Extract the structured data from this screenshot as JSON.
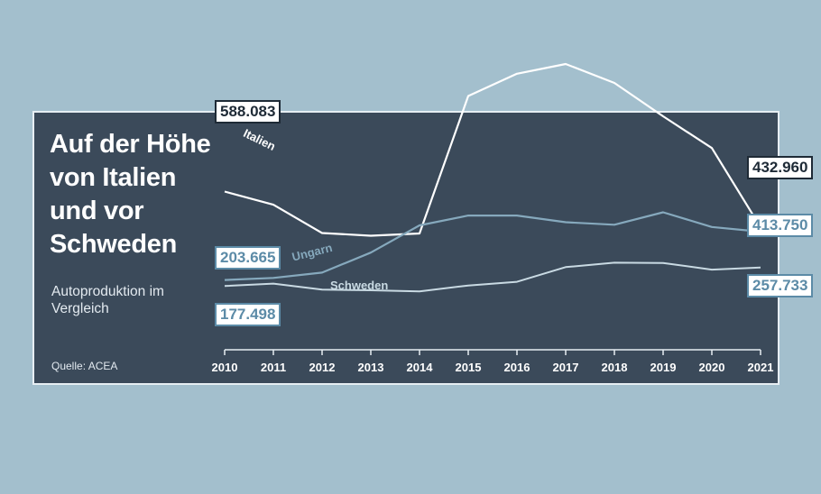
{
  "title": "Auf der Höhe von Italien und vor Schweden",
  "subtitle": "Autoproduktion im Vergleich",
  "source": "Quelle: ACEA",
  "colors": {
    "background": "#a3bfcd",
    "panel": "#3b4a5a",
    "italien": "#ffffff",
    "ungarn": "#86a9bd",
    "schweden": "#c9dae3"
  },
  "chart_data": {
    "type": "line",
    "categories": [
      "2010",
      "2011",
      "2012",
      "2013",
      "2014",
      "2015",
      "2016",
      "2017",
      "2018",
      "2019",
      "2020",
      "2021"
    ],
    "ylim": [
      120000,
      1150000
    ],
    "series": [
      {
        "name": "Italien",
        "values": [
          588083,
          531000,
          408000,
          396000,
          406000,
          1003000,
          1100000,
          1142000,
          1060000,
          915000,
          777000,
          432960
        ],
        "start_label": "588.083",
        "end_label": "432.960"
      },
      {
        "name": "Ungarn",
        "values": [
          203665,
          213000,
          236000,
          323000,
          441000,
          484000,
          484000,
          455000,
          444000,
          498000,
          434000,
          413750
        ],
        "start_label": "203.665",
        "end_label": "413.750"
      },
      {
        "name": "Schweden",
        "values": [
          177498,
          188000,
          162000,
          159000,
          154000,
          180000,
          196000,
          260000,
          279000,
          278000,
          249000,
          257733
        ],
        "start_label": "177.498",
        "end_label": "257.733"
      }
    ]
  }
}
